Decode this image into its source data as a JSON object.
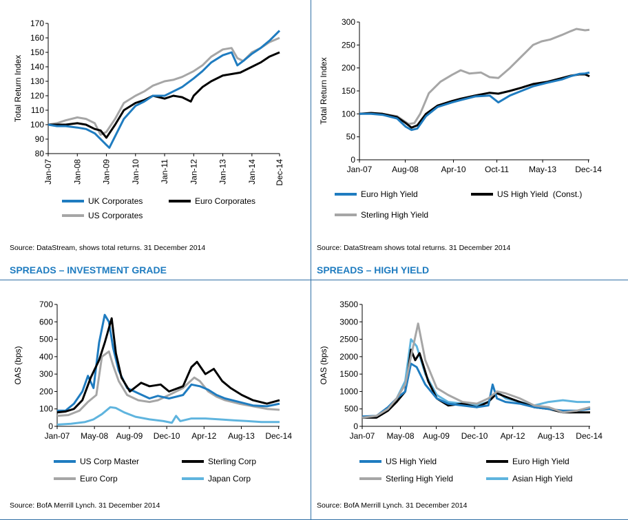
{
  "panels": {
    "tl": {
      "source": "Source: DataStream, shows total returns. 31 December 2014",
      "legend": [
        {
          "label": "UK Corporates",
          "color": "#1f7cc0"
        },
        {
          "label": "Euro Corporates",
          "color": "#000000"
        },
        {
          "label": "US Corporates",
          "color": "#a6a6a6"
        }
      ]
    },
    "tr": {
      "source": "Source: DataStream shows total returns. 31 December 2014",
      "legend": [
        {
          "label": "Euro High Yield",
          "color": "#1f7cc0"
        },
        {
          "label": "US High Yield  (Const.)",
          "color": "#000000"
        },
        {
          "label": "Sterling High Yield",
          "color": "#a6a6a6"
        }
      ]
    },
    "bl": {
      "title": "SPREADS – INVESTMENT GRADE",
      "source": "Source: BofA Merrill Lynch. 31 December 2014",
      "legend": [
        {
          "label": "US Corp Master",
          "color": "#1f7cc0"
        },
        {
          "label": "Sterling Corp",
          "color": "#000000"
        },
        {
          "label": "Euro Corp",
          "color": "#a6a6a6"
        },
        {
          "label": "Japan Corp",
          "color": "#5fb4de"
        }
      ]
    },
    "br": {
      "title": "SPREADS – HIGH YIELD",
      "source": "Source: BofA Merrill Lynch. 31 December 2014",
      "legend": [
        {
          "label": "US High Yield",
          "color": "#1f7cc0"
        },
        {
          "label": "Euro High Yield",
          "color": "#000000"
        },
        {
          "label": "Sterling High Yield",
          "color": "#a6a6a6"
        },
        {
          "label": "Asian High Yield",
          "color": "#5fb4de"
        }
      ]
    }
  },
  "chart_data": [
    {
      "id": "tl",
      "type": "line",
      "title": "",
      "xlabel": "",
      "ylabel": "Total Return Index",
      "ylim": [
        80,
        170
      ],
      "yticks": [
        80,
        90,
        100,
        110,
        120,
        130,
        140,
        150,
        160,
        170
      ],
      "xlim": [
        2007.0,
        2014.95
      ],
      "xtick_labels": [
        "Jan-07",
        "Jan-08",
        "Jan-09",
        "Jan-10",
        "Jan-11",
        "Jan-12",
        "Jan-13",
        "Jan-14",
        "Dec-14"
      ],
      "xtick_pos": [
        2007.0,
        2008.0,
        2009.0,
        2010.0,
        2011.0,
        2012.0,
        2013.0,
        2014.0,
        2014.95
      ],
      "series": [
        {
          "name": "US Corporates",
          "color": "#a6a6a6",
          "x": [
            2007.0,
            2007.3,
            2007.6,
            2008.0,
            2008.3,
            2008.6,
            2008.8,
            2009.0,
            2009.3,
            2009.6,
            2010.0,
            2010.3,
            2010.6,
            2011.0,
            2011.3,
            2011.6,
            2012.0,
            2012.3,
            2012.6,
            2013.0,
            2013.3,
            2013.5,
            2013.7,
            2014.0,
            2014.3,
            2014.6,
            2014.95
          ],
          "values": [
            100,
            101,
            103,
            105,
            104,
            101,
            93,
            95,
            104,
            115,
            120,
            123,
            127,
            130,
            131,
            133,
            137,
            141,
            147,
            152,
            153,
            146,
            144,
            150,
            153,
            157,
            160
          ]
        },
        {
          "name": "Euro Corporates",
          "color": "#000000",
          "x": [
            2007.0,
            2007.3,
            2007.6,
            2008.0,
            2008.3,
            2008.6,
            2008.8,
            2009.0,
            2009.3,
            2009.6,
            2010.0,
            2010.3,
            2010.6,
            2011.0,
            2011.3,
            2011.6,
            2011.9,
            2012.0,
            2012.3,
            2012.6,
            2013.0,
            2013.3,
            2013.6,
            2014.0,
            2014.3,
            2014.6,
            2014.95
          ],
          "values": [
            100,
            100,
            100,
            101,
            100,
            97,
            96,
            91,
            100,
            110,
            115,
            117,
            120,
            118,
            120,
            119,
            116,
            120,
            126,
            130,
            134,
            135,
            136,
            140,
            143,
            147,
            150
          ]
        },
        {
          "name": "UK Corporates",
          "color": "#1f7cc0",
          "x": [
            2007.0,
            2007.3,
            2007.6,
            2008.0,
            2008.3,
            2008.6,
            2008.9,
            2009.0,
            2009.1,
            2009.3,
            2009.6,
            2010.0,
            2010.3,
            2010.6,
            2011.0,
            2011.3,
            2011.6,
            2012.0,
            2012.3,
            2012.6,
            2013.0,
            2013.3,
            2013.5,
            2013.7,
            2014.0,
            2014.3,
            2014.6,
            2014.95
          ],
          "values": [
            100,
            99,
            99,
            98,
            97,
            94,
            88,
            86,
            84,
            92,
            104,
            113,
            116,
            120,
            120,
            123,
            126,
            132,
            137,
            143,
            148,
            150,
            141,
            144,
            149,
            153,
            158,
            165
          ]
        }
      ]
    },
    {
      "id": "tr",
      "type": "line",
      "title": "",
      "xlabel": "",
      "ylabel": "Total Return Index",
      "ylim": [
        0,
        300
      ],
      "yticks": [
        0,
        50,
        100,
        150,
        200,
        250,
        300
      ],
      "xlim": [
        2007.0,
        2014.95
      ],
      "xtick_labels": [
        "Jan-07",
        "Aug-08",
        "Apr-10",
        "Oct-11",
        "May-13",
        "Dec-14"
      ],
      "xtick_pos": [
        2007.0,
        2008.583,
        2010.25,
        2011.75,
        2013.333,
        2014.917
      ],
      "series": [
        {
          "name": "Sterling High Yield",
          "color": "#a6a6a6",
          "x": [
            2007.0,
            2007.4,
            2007.8,
            2008.3,
            2008.7,
            2008.9,
            2009.1,
            2009.4,
            2009.8,
            2010.2,
            2010.5,
            2010.8,
            2011.2,
            2011.5,
            2011.8,
            2012.2,
            2012.6,
            2013.0,
            2013.3,
            2013.6,
            2014.0,
            2014.3,
            2014.5,
            2014.8,
            2014.95
          ],
          "values": [
            100,
            101,
            100,
            95,
            78,
            80,
            100,
            145,
            170,
            185,
            195,
            188,
            190,
            180,
            178,
            200,
            225,
            250,
            258,
            262,
            272,
            280,
            285,
            282,
            283
          ]
        },
        {
          "name": "US High Yield (Const.)",
          "color": "#000000",
          "x": [
            2007.0,
            2007.4,
            2007.8,
            2008.3,
            2008.6,
            2008.8,
            2009.0,
            2009.3,
            2009.7,
            2010.2,
            2010.5,
            2011.0,
            2011.5,
            2011.8,
            2012.2,
            2012.6,
            2013.0,
            2013.5,
            2014.0,
            2014.3,
            2014.6,
            2014.8,
            2014.95
          ],
          "values": [
            100,
            102,
            100,
            93,
            80,
            70,
            75,
            100,
            118,
            128,
            133,
            140,
            146,
            144,
            150,
            157,
            165,
            170,
            178,
            183,
            186,
            186,
            182
          ]
        },
        {
          "name": "Euro High Yield",
          "color": "#1f7cc0",
          "x": [
            2007.0,
            2007.4,
            2007.8,
            2008.3,
            2008.6,
            2008.8,
            2009.0,
            2009.3,
            2009.7,
            2010.2,
            2010.5,
            2011.0,
            2011.5,
            2011.8,
            2012.2,
            2012.6,
            2013.0,
            2013.5,
            2014.0,
            2014.3,
            2014.6,
            2014.8,
            2014.95
          ],
          "values": [
            100,
            100,
            98,
            90,
            72,
            65,
            68,
            95,
            115,
            125,
            130,
            138,
            140,
            125,
            140,
            150,
            160,
            168,
            175,
            182,
            187,
            188,
            190
          ]
        }
      ]
    },
    {
      "id": "bl",
      "type": "line",
      "title": "SPREADS – INVESTMENT GRADE",
      "xlabel": "",
      "ylabel": "OAS (bps)",
      "ylim": [
        0,
        700
      ],
      "yticks": [
        0,
        100,
        200,
        300,
        400,
        500,
        600,
        700
      ],
      "xlim": [
        2007.0,
        2014.95
      ],
      "xtick_labels": [
        "Jan-07",
        "May-08",
        "Aug-09",
        "Dec-10",
        "Apr-12",
        "Aug-13",
        "Dec-14"
      ],
      "xtick_pos": [
        2007.0,
        2008.333,
        2009.583,
        2010.917,
        2012.25,
        2013.583,
        2014.917
      ],
      "series": [
        {
          "name": "Euro Corp",
          "color": "#a6a6a6",
          "x": [
            2007.0,
            2007.4,
            2007.8,
            2008.1,
            2008.4,
            2008.6,
            2008.85,
            2009.0,
            2009.2,
            2009.5,
            2009.9,
            2010.3,
            2010.6,
            2011.0,
            2011.5,
            2011.9,
            2012.1,
            2012.4,
            2012.7,
            2013.0,
            2013.5,
            2014.0,
            2014.5,
            2014.95
          ],
          "values": [
            60,
            65,
            90,
            140,
            180,
            400,
            430,
            350,
            260,
            180,
            150,
            140,
            150,
            180,
            220,
            280,
            260,
            200,
            170,
            150,
            130,
            115,
            100,
            95
          ]
        },
        {
          "name": "US Corp Master",
          "color": "#1f7cc0",
          "x": [
            2007.0,
            2007.3,
            2007.6,
            2007.9,
            2008.1,
            2008.3,
            2008.5,
            2008.7,
            2008.85,
            2009.0,
            2009.2,
            2009.5,
            2009.9,
            2010.3,
            2010.6,
            2011.0,
            2011.5,
            2011.8,
            2012.1,
            2012.4,
            2012.7,
            2013.0,
            2013.5,
            2014.0,
            2014.5,
            2014.95
          ],
          "values": [
            90,
            90,
            130,
            200,
            290,
            220,
            480,
            640,
            600,
            450,
            320,
            220,
            190,
            160,
            175,
            160,
            180,
            240,
            230,
            210,
            180,
            160,
            140,
            120,
            115,
            130
          ]
        },
        {
          "name": "Sterling Corp",
          "color": "#000000",
          "x": [
            2007.0,
            2007.3,
            2007.6,
            2007.9,
            2008.2,
            2008.5,
            2008.7,
            2008.95,
            2009.1,
            2009.3,
            2009.6,
            2010.0,
            2010.3,
            2010.7,
            2011.0,
            2011.5,
            2011.8,
            2012.0,
            2012.3,
            2012.6,
            2012.9,
            2013.2,
            2013.6,
            2014.0,
            2014.5,
            2014.95
          ],
          "values": [
            80,
            85,
            100,
            150,
            280,
            380,
            480,
            620,
            420,
            280,
            200,
            250,
            230,
            240,
            200,
            230,
            340,
            370,
            300,
            330,
            260,
            220,
            180,
            150,
            130,
            150
          ]
        },
        {
          "name": "Japan Corp",
          "color": "#5fb4de",
          "x": [
            2007.0,
            2007.5,
            2008.0,
            2008.3,
            2008.6,
            2008.9,
            2009.1,
            2009.4,
            2009.8,
            2010.3,
            2010.8,
            2011.1,
            2011.25,
            2011.4,
            2011.8,
            2012.3,
            2012.8,
            2013.3,
            2013.8,
            2014.3,
            2014.95
          ],
          "values": [
            10,
            15,
            25,
            40,
            70,
            110,
            105,
            80,
            55,
            40,
            30,
            20,
            60,
            30,
            45,
            45,
            40,
            35,
            30,
            25,
            25
          ]
        }
      ]
    },
    {
      "id": "br",
      "type": "line",
      "title": "SPREADS – HIGH YIELD",
      "xlabel": "",
      "ylabel": "OAS (bps)",
      "ylim": [
        0,
        3500
      ],
      "yticks": [
        0,
        500,
        1000,
        1500,
        2000,
        2500,
        3000,
        3500
      ],
      "xlim": [
        2007.0,
        2014.95
      ],
      "xtick_labels": [
        "Jan-07",
        "May-08",
        "Aug-09",
        "Dec-10",
        "Apr-12",
        "Aug-13",
        "Dec-14"
      ],
      "xtick_pos": [
        2007.0,
        2008.333,
        2009.583,
        2010.917,
        2012.25,
        2013.583,
        2014.917
      ],
      "series": [
        {
          "name": "Asian High Yield",
          "color": "#5fb4de",
          "x": [
            2007.0,
            2007.5,
            2007.9,
            2008.2,
            2008.5,
            2008.7,
            2008.9,
            2009.2,
            2009.6,
            2010.0,
            2010.5,
            2011.0,
            2011.4,
            2011.7,
            2012.0,
            2012.5,
            2013.0,
            2013.5,
            2014.0,
            2014.5,
            2014.95
          ],
          "values": [
            250,
            280,
            500,
            800,
            1300,
            2500,
            2300,
            1500,
            900,
            700,
            650,
            600,
            700,
            1000,
            800,
            700,
            600,
            700,
            750,
            700,
            700
          ]
        },
        {
          "name": "Euro High Yield",
          "color": "#000000",
          "x": [
            2007.0,
            2007.5,
            2007.9,
            2008.2,
            2008.5,
            2008.7,
            2008.85,
            2009.0,
            2009.3,
            2009.6,
            2010.0,
            2010.5,
            2011.0,
            2011.4,
            2011.7,
            2012.0,
            2012.5,
            2013.0,
            2013.5,
            2014.0,
            2014.5,
            2014.95
          ],
          "values": [
            250,
            250,
            450,
            700,
            1000,
            2200,
            1900,
            2100,
            1300,
            800,
            600,
            650,
            550,
            700,
            950,
            850,
            700,
            550,
            500,
            400,
            400,
            400
          ]
        },
        {
          "name": "US High Yield",
          "color": "#1f7cc0",
          "x": [
            2007.0,
            2007.5,
            2007.9,
            2008.2,
            2008.5,
            2008.7,
            2008.9,
            2009.2,
            2009.6,
            2010.0,
            2010.5,
            2011.0,
            2011.4,
            2011.55,
            2011.7,
            2012.0,
            2012.5,
            2013.0,
            2013.5,
            2014.0,
            2014.5,
            2014.95
          ],
          "values": [
            280,
            300,
            550,
            800,
            1000,
            1800,
            1700,
            1200,
            800,
            650,
            600,
            550,
            600,
            1200,
            800,
            700,
            650,
            550,
            500,
            450,
            450,
            500
          ]
        },
        {
          "name": "Sterling High Yield",
          "color": "#a6a6a6",
          "x": [
            2007.0,
            2007.5,
            2007.9,
            2008.2,
            2008.5,
            2008.7,
            2008.95,
            2009.2,
            2009.6,
            2010.0,
            2010.5,
            2011.0,
            2011.4,
            2011.7,
            2012.0,
            2012.5,
            2013.0,
            2013.5,
            2014.0,
            2014.5,
            2014.95
          ],
          "values": [
            250,
            300,
            500,
            800,
            1200,
            2000,
            2950,
            1900,
            1100,
            900,
            700,
            650,
            800,
            1000,
            950,
            800,
            600,
            550,
            400,
            450,
            550
          ]
        }
      ]
    }
  ]
}
